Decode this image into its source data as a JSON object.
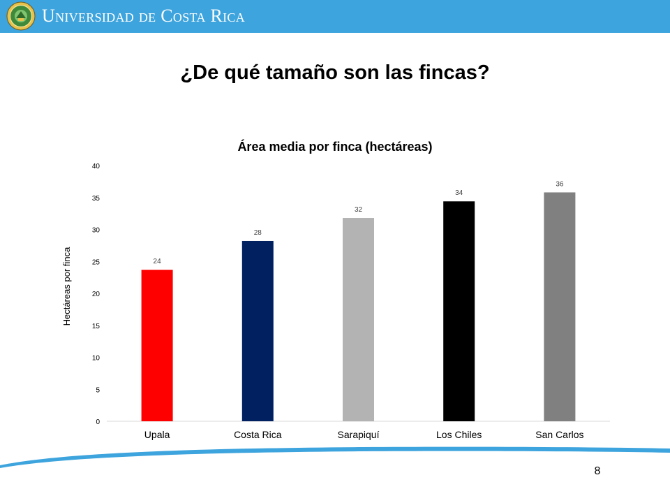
{
  "header": {
    "university_name": "Universidad de Costa Rica",
    "bar_color": "#3ea4dd",
    "logo_icon": "university-seal-icon"
  },
  "slide": {
    "title": "¿De qué tamaño son las fincas?",
    "page_number": "8"
  },
  "chart_data": {
    "type": "bar",
    "title": "Área media por finca (hectáreas)",
    "xlabel": "",
    "ylabel": "Hectáreas por finca",
    "categories": [
      "Upala",
      "Costa Rica",
      "Sarapiquí",
      "Los Chiles",
      "San Carlos"
    ],
    "values": [
      23.7,
      28.2,
      31.8,
      34.4,
      35.8
    ],
    "data_labels": [
      "24",
      "28",
      "32",
      "34",
      "36"
    ],
    "colors": [
      "#ff0000",
      "#002060",
      "#b3b3b3",
      "#000000",
      "#808080"
    ],
    "ylim": [
      0,
      40
    ],
    "yticks": [
      "0",
      "5",
      "10",
      "15",
      "20",
      "25",
      "30",
      "35",
      "40"
    ],
    "grid": false,
    "legend": "none"
  }
}
